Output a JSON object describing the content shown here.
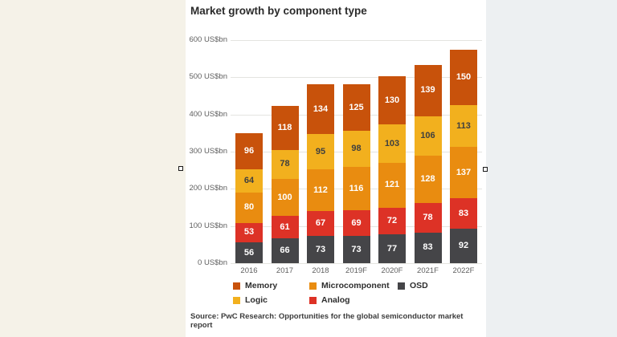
{
  "page": {
    "background_left_color": "#f5f2e8",
    "background_right_color": "#edf0f2",
    "card_color": "#ffffff"
  },
  "chart": {
    "title": "Market growth by component type",
    "source": "Source: PwC Research: Opportunities for the global semiconductor market report",
    "y_ticks": [
      "600 US$bn",
      "500 US$bn",
      "400 US$bn",
      "300 US$bn",
      "200 US$bn",
      "100 US$bn",
      "0 US$bn"
    ]
  },
  "chart_data": {
    "type": "bar",
    "stacked": true,
    "title": "Market growth by component type",
    "categories": [
      "2016",
      "2017",
      "2018",
      "2019F",
      "2020F",
      "2021F",
      "2022F"
    ],
    "series": [
      {
        "name": "Memory",
        "color": "#c8520b",
        "label_color": "#ffffff",
        "values": [
          96,
          118,
          134,
          125,
          130,
          139,
          150
        ]
      },
      {
        "name": "Microcomponent",
        "color": "#e98c10",
        "label_color": "#ffffff",
        "values": [
          80,
          100,
          112,
          116,
          121,
          128,
          137
        ]
      },
      {
        "name": "OSD",
        "color": "#454548",
        "label_color": "#ffffff",
        "values": [
          56,
          66,
          73,
          73,
          77,
          83,
          92
        ]
      },
      {
        "name": "Logic",
        "color": "#f2b01e",
        "label_color": "#3f3f3f",
        "values": [
          64,
          78,
          95,
          98,
          103,
          106,
          113
        ]
      },
      {
        "name": "Analog",
        "color": "#dd3226",
        "label_color": "#ffffff",
        "values": [
          53,
          61,
          67,
          69,
          72,
          78,
          83
        ]
      }
    ],
    "stack_order_bottom_to_top": [
      "OSD",
      "Analog",
      "Microcomponent",
      "Logic",
      "Memory"
    ],
    "totals": [
      349,
      423,
      481,
      481,
      503,
      534,
      575
    ],
    "ylabel": "US$bn",
    "ylim": [
      0,
      600
    ],
    "y_tick_step": 100,
    "grid": true,
    "legend_position": "bottom",
    "legend_rows": [
      [
        "Memory",
        "Microcomponent",
        "OSD"
      ],
      [
        "Logic",
        "Analog"
      ]
    ],
    "data_labels": true
  }
}
